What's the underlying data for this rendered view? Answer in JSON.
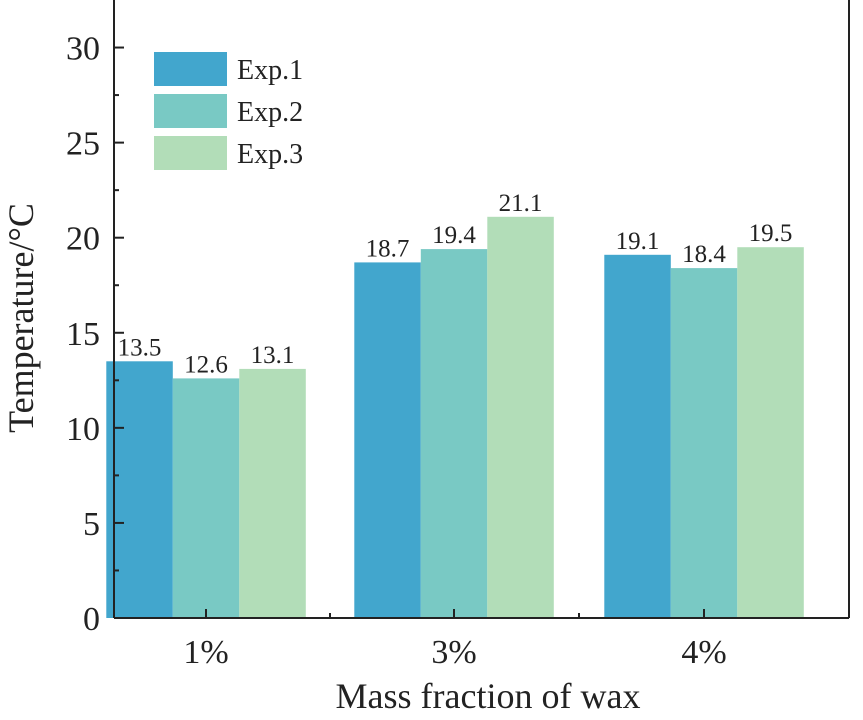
{
  "chart_data": {
    "type": "bar",
    "categories": [
      "1%",
      "3%",
      "4%"
    ],
    "series": [
      {
        "name": "Exp.1",
        "values": [
          13.5,
          18.7,
          19.1
        ],
        "color": "#42a6cd"
      },
      {
        "name": "Exp.2",
        "values": [
          12.6,
          19.4,
          18.4
        ],
        "color": "#79c9c4"
      },
      {
        "name": "Exp.3",
        "values": [
          13.1,
          21.1,
          19.5
        ],
        "color": "#b2ddb8"
      }
    ],
    "data_labels": [
      [
        "13.5",
        "12.6",
        "13.1"
      ],
      [
        "18.7",
        "19.4",
        "21.1"
      ],
      [
        "19.1",
        "18.4",
        "19.5"
      ]
    ],
    "title": "",
    "xlabel": "Mass fraction of wax",
    "ylabel": "Temperature/°C",
    "ylim": [
      0,
      32.5
    ],
    "yticks": [
      0,
      5,
      10,
      15,
      20,
      25,
      30
    ],
    "ytick_labels": [
      "0",
      "5",
      "10",
      "15",
      "20",
      "25",
      "30"
    ],
    "grid": false,
    "legend_position": "top-left"
  }
}
